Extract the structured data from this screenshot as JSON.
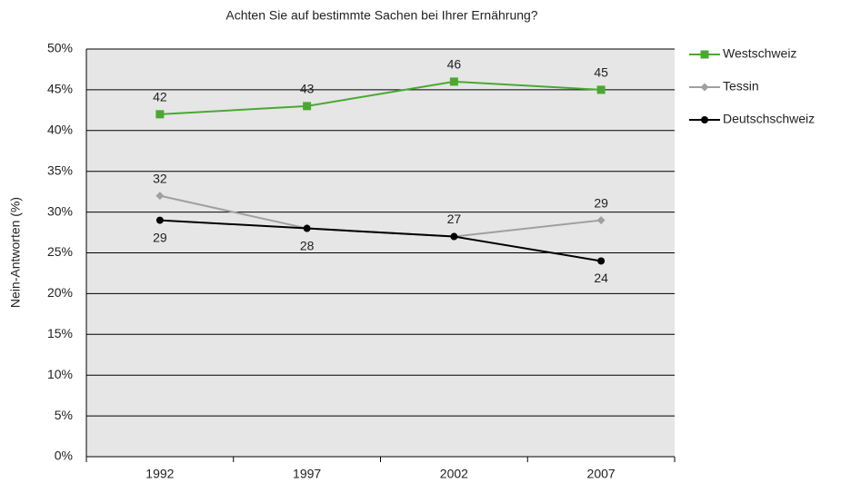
{
  "chart_data": {
    "type": "line",
    "title": "Achten Sie auf bestimmte Sachen bei Ihrer Ernährung?",
    "y_label": "Nein-Antworten (%)",
    "categories": [
      "1992",
      "1997",
      "2002",
      "2007"
    ],
    "series": [
      {
        "name": "Westschweiz",
        "color": "#4aa832",
        "marker": "square",
        "values": [
          42,
          43,
          46,
          45
        ],
        "value_labels": [
          "42",
          "43",
          "46",
          "45"
        ]
      },
      {
        "name": "Tessin",
        "color": "#a0a0a0",
        "marker": "diamond",
        "values": [
          32,
          28,
          27,
          29
        ],
        "value_labels": [
          "32",
          null,
          "27",
          "29"
        ]
      },
      {
        "name": "Deutschschweiz",
        "color": "#000000",
        "marker": "circle",
        "values": [
          29,
          28,
          27,
          24
        ],
        "value_labels": [
          "29",
          "28",
          null,
          "24"
        ]
      }
    ],
    "ylim": [
      0,
      50
    ],
    "yticks": [
      {
        "value": 0,
        "label": "0%"
      },
      {
        "value": 5,
        "label": "5%"
      },
      {
        "value": 10,
        "label": "10%"
      },
      {
        "value": 15,
        "label": "15%"
      },
      {
        "value": 20,
        "label": "20%"
      },
      {
        "value": 25,
        "label": "25%"
      },
      {
        "value": 30,
        "label": "30%"
      },
      {
        "value": 35,
        "label": "35%"
      },
      {
        "value": 40,
        "label": "40%"
      },
      {
        "value": 45,
        "label": "45%"
      },
      {
        "value": 50,
        "label": "50%"
      }
    ],
    "grid": true,
    "legend": "right"
  }
}
